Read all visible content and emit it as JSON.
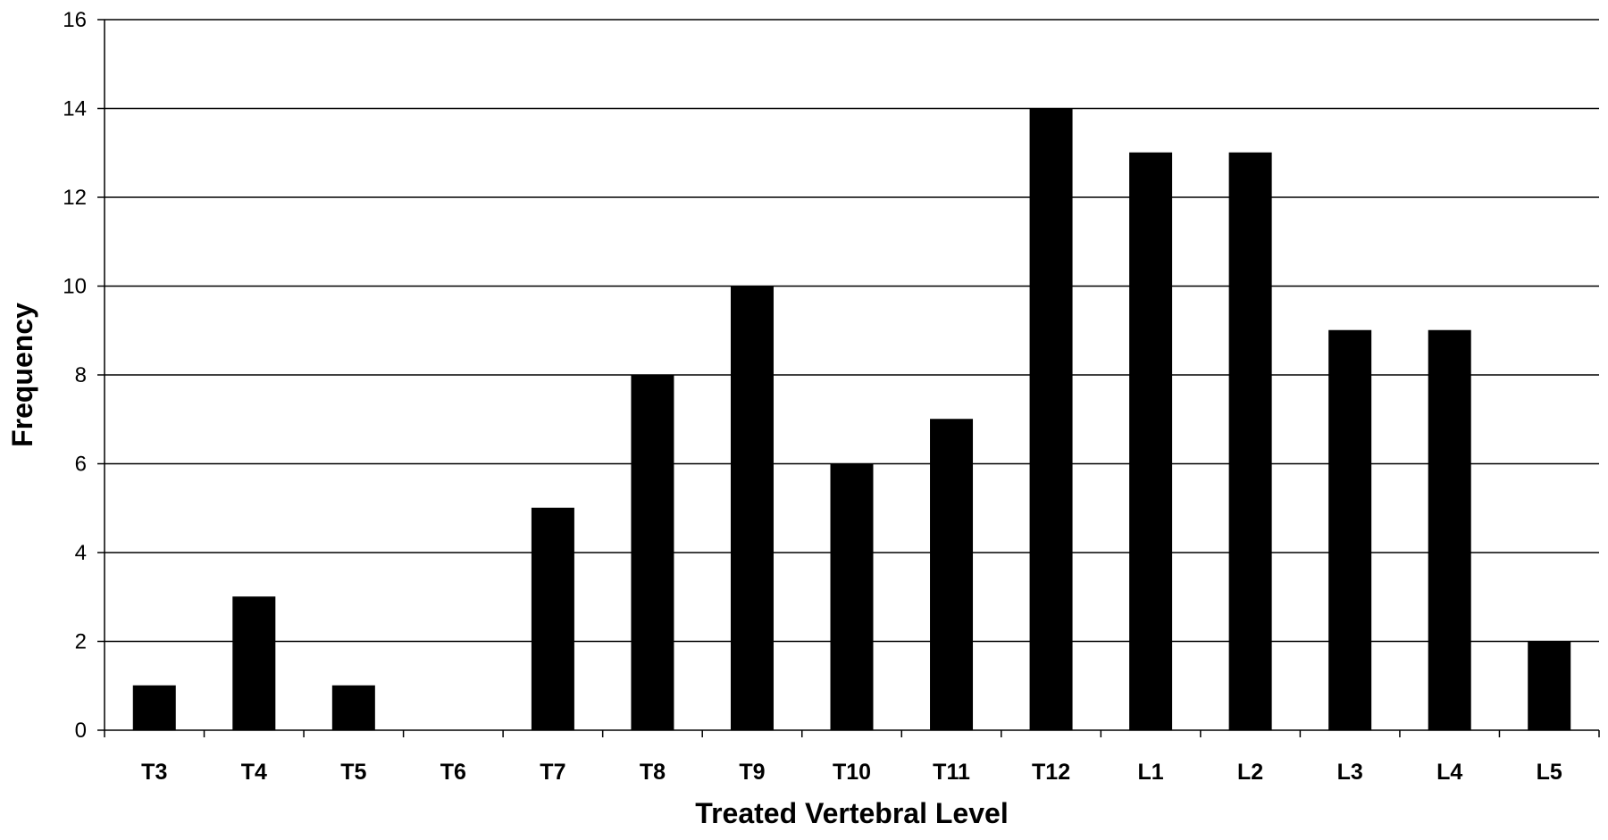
{
  "chart_data": {
    "type": "bar",
    "title": "",
    "xlabel": "Treated Vertebral Level",
    "ylabel": "Frequency",
    "categories": [
      "T3",
      "T4",
      "T5",
      "T6",
      "T7",
      "T8",
      "T9",
      "T10",
      "T11",
      "T12",
      "L1",
      "L2",
      "L3",
      "L4",
      "L5"
    ],
    "values": [
      1,
      3,
      1,
      0,
      5,
      8,
      10,
      6,
      7,
      14,
      13,
      13,
      9,
      9,
      2
    ],
    "ylim": [
      0,
      16
    ],
    "yticks": [
      0,
      2,
      4,
      6,
      8,
      10,
      12,
      14,
      16
    ],
    "grid": true,
    "legend": "none",
    "bar_color": "#000000"
  }
}
